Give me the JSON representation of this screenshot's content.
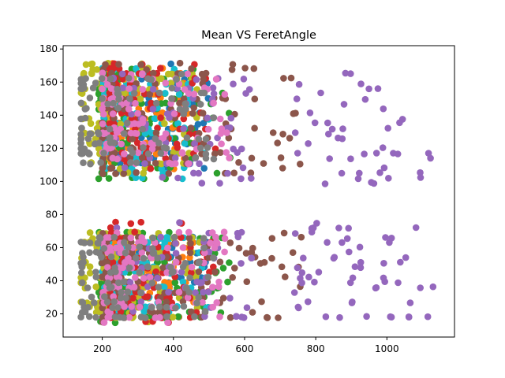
{
  "chart_data": {
    "type": "scatter",
    "title": "Mean VS FeretAngle",
    "xlabel": "",
    "ylabel": "",
    "xlim": [
      90,
      1190
    ],
    "ylim": [
      6,
      182
    ],
    "x_ticks": [
      200,
      400,
      600,
      800,
      1000
    ],
    "y_ticks": [
      20,
      40,
      60,
      80,
      100,
      120,
      140,
      160,
      180
    ],
    "legend": "none",
    "grid": false,
    "palette": [
      "#1f77b4",
      "#ff7f0e",
      "#2ca02c",
      "#d62728",
      "#9467bd",
      "#8c564b",
      "#e377c2",
      "#7f7f7f",
      "#bcbd22",
      "#17becf"
    ],
    "series": [
      {
        "color": "#1f77b4",
        "x_range": [
          200,
          500
        ],
        "y_bands": [
          [
            105,
            172
          ],
          [
            18,
            68
          ]
        ]
      },
      {
        "color": "#ff7f0e",
        "x_range": [
          210,
          470
        ],
        "y_bands": [
          [
            108,
            170
          ],
          [
            18,
            66
          ]
        ]
      },
      {
        "color": "#2ca02c",
        "x_range": [
          190,
          560
        ],
        "y_bands": [
          [
            102,
            170
          ],
          [
            16,
            70
          ]
        ]
      },
      {
        "color": "#d62728",
        "x_range": [
          220,
          520
        ],
        "y_bands": [
          [
            108,
            172
          ],
          [
            14,
            75
          ]
        ]
      },
      {
        "color": "#9467bd",
        "x_range": [
          230,
          1150
        ],
        "y_bands": [
          [
            98,
            165
          ],
          [
            16,
            75
          ]
        ]
      },
      {
        "color": "#8c564b",
        "x_range": [
          200,
          760
        ],
        "y_bands": [
          [
            104,
            172
          ],
          [
            16,
            70
          ]
        ]
      },
      {
        "color": "#e377c2",
        "x_range": [
          200,
          560
        ],
        "y_bands": [
          [
            110,
            165
          ],
          [
            16,
            70
          ]
        ]
      },
      {
        "color": "#7f7f7f",
        "x_range": [
          140,
          520
        ],
        "y_bands": [
          [
            110,
            165
          ],
          [
            16,
            66
          ]
        ]
      },
      {
        "color": "#bcbd22",
        "x_range": [
          140,
          480
        ],
        "y_bands": [
          [
            104,
            172
          ],
          [
            16,
            70
          ]
        ]
      },
      {
        "color": "#17becf",
        "x_range": [
          200,
          500
        ],
        "y_bands": [
          [
            102,
            170
          ],
          [
            20,
            66
          ]
        ]
      }
    ]
  }
}
